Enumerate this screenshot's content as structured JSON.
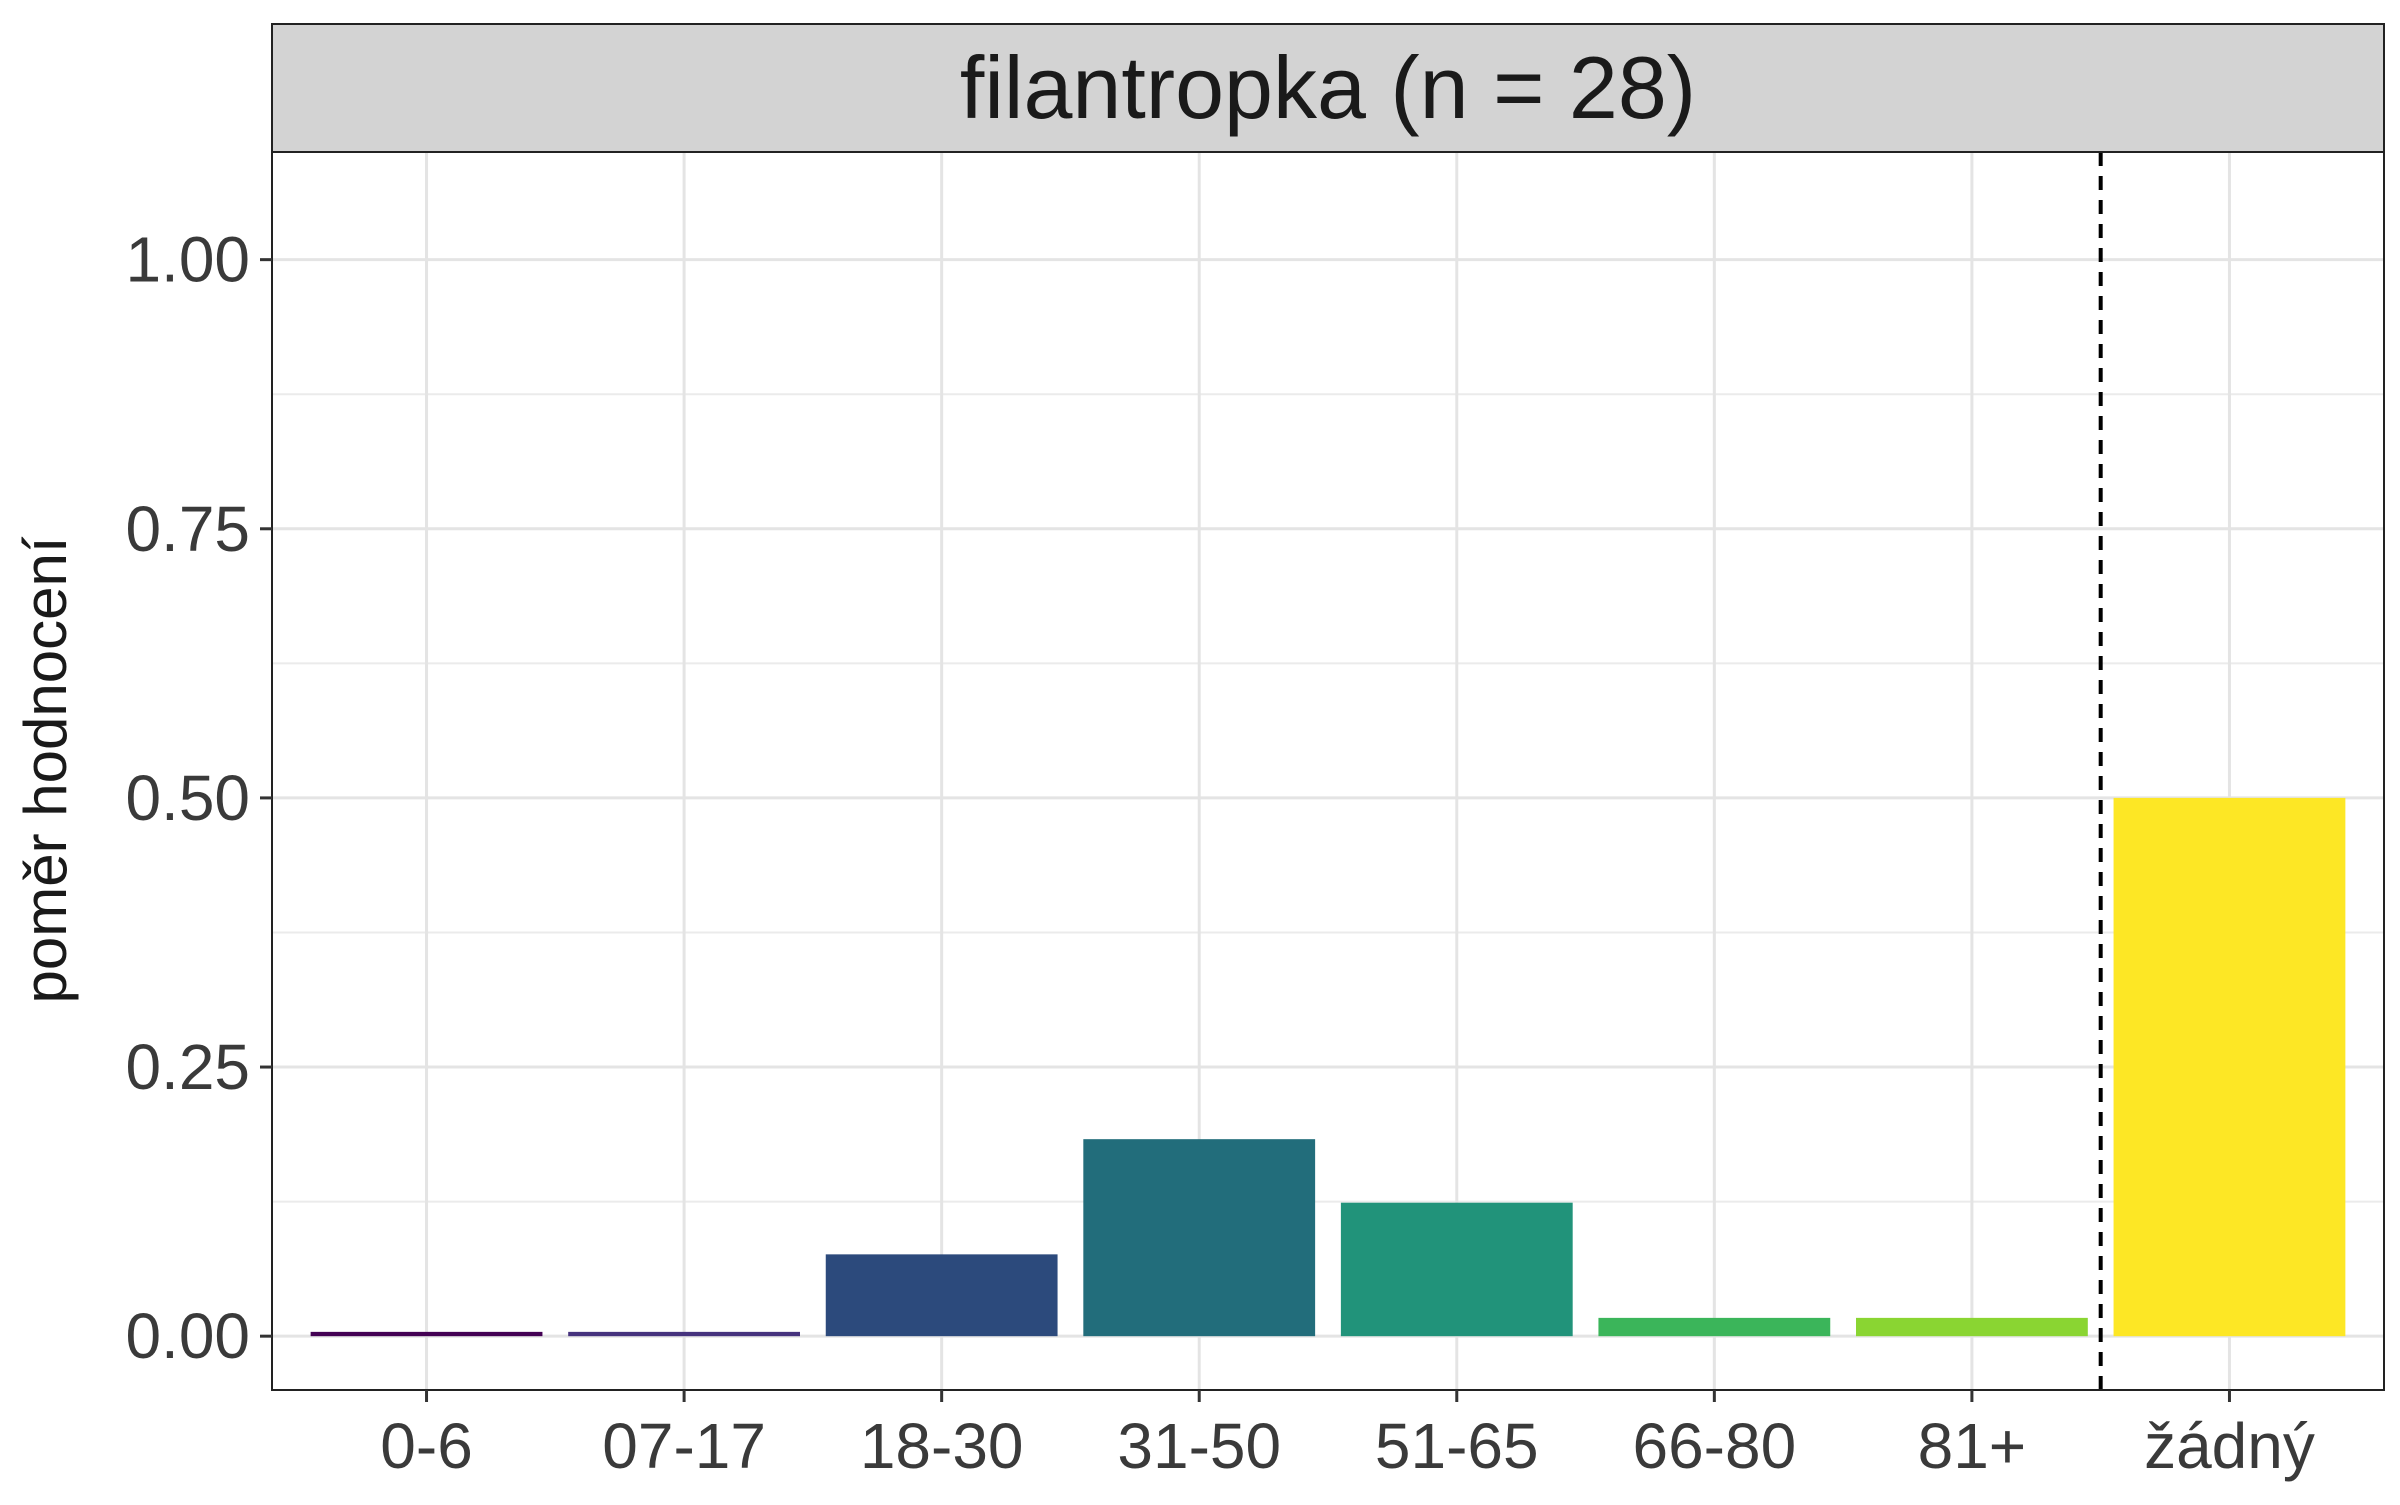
{
  "chart_data": {
    "type": "bar",
    "facet_title": "filantropka (n = 28)",
    "ylabel": "poměr hodnocení",
    "xlabel": "",
    "categories": [
      "0-6",
      "07-17",
      "18-30",
      "31-50",
      "51-65",
      "66-80",
      "81+",
      "žádný"
    ],
    "values": [
      0.004,
      0.004,
      0.076,
      0.183,
      0.124,
      0.017,
      0.017,
      0.5
    ],
    "colors": [
      "#440154",
      "#46337E",
      "#2C4A7C",
      "#226D7B",
      "#21937A",
      "#3BB55A",
      "#8AD532",
      "#FDE725"
    ],
    "ylim": [
      -0.05,
      1.1
    ],
    "yticks": [
      "0.00",
      "0.25",
      "0.50",
      "0.75",
      "1.00"
    ],
    "ytick_values": [
      0,
      0.25,
      0.5,
      0.75,
      1.0
    ],
    "reference_line": {
      "style": "dashed",
      "between": [
        "81+",
        "žádný"
      ]
    },
    "grid": true,
    "legend": "none"
  }
}
